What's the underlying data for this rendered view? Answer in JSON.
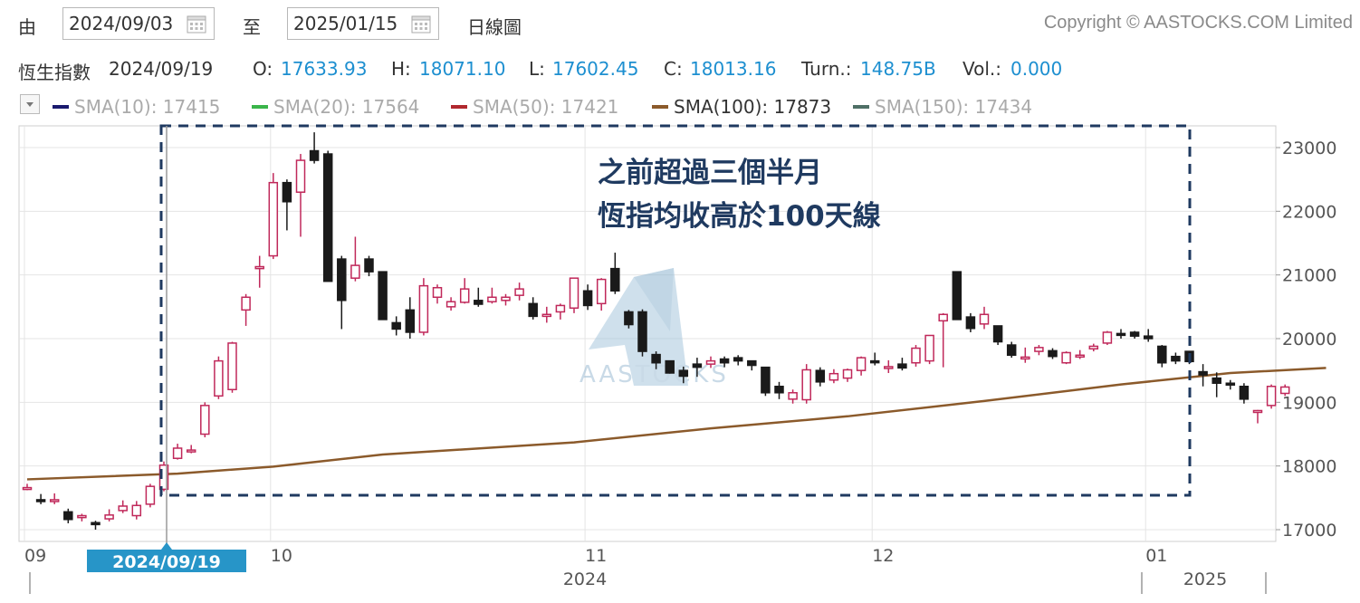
{
  "toolbar": {
    "from_label": "由",
    "from_date": "2024/09/03",
    "to_label": "至",
    "to_date": "2025/01/15",
    "period": "日線圖",
    "copyright": "Copyright © AASTOCKS.COM Limited"
  },
  "info": {
    "index_name": "恆生指數",
    "date": "2024/09/19",
    "open_label": "O:",
    "open": "17633.93",
    "high_label": "H:",
    "high": "18071.10",
    "low_label": "L:",
    "low": "17602.45",
    "close_label": "C:",
    "close": "18013.16",
    "turnover_label": "Turn.:",
    "turnover": "148.75B",
    "volume_label": "Vol.:",
    "volume": "0.000"
  },
  "legend": [
    {
      "label": "SMA(10): 17415",
      "color": "#1a1a6e",
      "active": false
    },
    {
      "label": "SMA(20): 17564",
      "color": "#3ab54a",
      "active": false
    },
    {
      "label": "SMA(50): 17421",
      "color": "#b0282e",
      "active": false
    },
    {
      "label": "SMA(100): 17873",
      "color": "#8b5a2b",
      "active": true
    },
    {
      "label": "SMA(150): 17434",
      "color": "#4f6f66",
      "active": false
    }
  ],
  "watermark": "AASTOCKS",
  "annotation": {
    "line1": "之前超過三個半月",
    "line2": "恆指均收高於100天線"
  },
  "crosshair_date_label": "2024/09/19",
  "chart_data": {
    "type": "candlestick",
    "ylim": [
      16800,
      23300
    ],
    "yticks": [
      17000,
      18000,
      19000,
      20000,
      21000,
      22000,
      23000
    ],
    "month_labels": [
      "09",
      "10",
      "11",
      "12",
      "01"
    ],
    "year_labels": [
      "2024",
      "2025"
    ],
    "colors": {
      "up": "#c0285a",
      "down": "#1a1a1a",
      "sma100": "#8b5a2b",
      "annotation_box": "#1f3a60"
    },
    "candles": [
      {
        "o": 17650,
        "h": 17720,
        "l": 17620,
        "c": 17660
      },
      {
        "o": 17470,
        "h": 17560,
        "l": 17400,
        "c": 17460
      },
      {
        "o": 17470,
        "h": 17570,
        "l": 17400,
        "c": 17470
      },
      {
        "o": 17280,
        "h": 17330,
        "l": 17100,
        "c": 17160
      },
      {
        "o": 17190,
        "h": 17250,
        "l": 17130,
        "c": 17220
      },
      {
        "o": 17110,
        "h": 17140,
        "l": 17000,
        "c": 17080
      },
      {
        "o": 17170,
        "h": 17320,
        "l": 17130,
        "c": 17230
      },
      {
        "o": 17300,
        "h": 17460,
        "l": 17260,
        "c": 17370
      },
      {
        "o": 17220,
        "h": 17450,
        "l": 17160,
        "c": 17380
      },
      {
        "o": 17400,
        "h": 17720,
        "l": 17350,
        "c": 17680
      },
      {
        "o": 17633.93,
        "h": 18071.1,
        "l": 17602.45,
        "c": 18013.16
      },
      {
        "o": 18120,
        "h": 18350,
        "l": 18100,
        "c": 18280
      },
      {
        "o": 18250,
        "h": 18330,
        "l": 18200,
        "c": 18250
      },
      {
        "o": 18500,
        "h": 19000,
        "l": 18450,
        "c": 18950
      },
      {
        "o": 19100,
        "h": 19720,
        "l": 19050,
        "c": 19650
      },
      {
        "o": 19200,
        "h": 19950,
        "l": 19150,
        "c": 19930
      },
      {
        "o": 20450,
        "h": 20700,
        "l": 20200,
        "c": 20650
      },
      {
        "o": 21100,
        "h": 21300,
        "l": 20800,
        "c": 21130
      },
      {
        "o": 21300,
        "h": 22600,
        "l": 21250,
        "c": 22450
      },
      {
        "o": 22450,
        "h": 22500,
        "l": 21700,
        "c": 22150
      },
      {
        "o": 22300,
        "h": 22900,
        "l": 21600,
        "c": 22800
      },
      {
        "o": 22950,
        "h": 23240,
        "l": 22750,
        "c": 22800
      },
      {
        "o": 22900,
        "h": 22950,
        "l": 20900,
        "c": 20900
      },
      {
        "o": 21250,
        "h": 21300,
        "l": 20150,
        "c": 20600
      },
      {
        "o": 20950,
        "h": 21600,
        "l": 20900,
        "c": 21150
      },
      {
        "o": 21250,
        "h": 21300,
        "l": 20980,
        "c": 21050
      },
      {
        "o": 21050,
        "h": 21050,
        "l": 20300,
        "c": 20300
      },
      {
        "o": 20250,
        "h": 20350,
        "l": 20050,
        "c": 20150
      },
      {
        "o": 20450,
        "h": 20650,
        "l": 20000,
        "c": 20100
      },
      {
        "o": 20100,
        "h": 20950,
        "l": 20050,
        "c": 20830
      },
      {
        "o": 20650,
        "h": 20850,
        "l": 20550,
        "c": 20800
      },
      {
        "o": 20500,
        "h": 20650,
        "l": 20440,
        "c": 20580
      },
      {
        "o": 20570,
        "h": 20950,
        "l": 20550,
        "c": 20780
      },
      {
        "o": 20600,
        "h": 20800,
        "l": 20500,
        "c": 20540
      },
      {
        "o": 20580,
        "h": 20800,
        "l": 20550,
        "c": 20650
      },
      {
        "o": 20600,
        "h": 20700,
        "l": 20520,
        "c": 20650
      },
      {
        "o": 20680,
        "h": 20880,
        "l": 20600,
        "c": 20780
      },
      {
        "o": 20550,
        "h": 20650,
        "l": 20300,
        "c": 20350
      },
      {
        "o": 20350,
        "h": 20500,
        "l": 20250,
        "c": 20380
      },
      {
        "o": 20420,
        "h": 20550,
        "l": 20300,
        "c": 20520
      },
      {
        "o": 20480,
        "h": 20950,
        "l": 20400,
        "c": 20950
      },
      {
        "o": 20750,
        "h": 20850,
        "l": 20450,
        "c": 20520
      },
      {
        "o": 20550,
        "h": 20950,
        "l": 20440,
        "c": 20930
      },
      {
        "o": 21100,
        "h": 21350,
        "l": 20700,
        "c": 20750
      },
      {
        "o": 20420,
        "h": 20450,
        "l": 20160,
        "c": 20220
      },
      {
        "o": 20420,
        "h": 20460,
        "l": 19720,
        "c": 19800
      },
      {
        "o": 19750,
        "h": 19800,
        "l": 19520,
        "c": 19620
      },
      {
        "o": 19650,
        "h": 19650,
        "l": 19450,
        "c": 19460
      },
      {
        "o": 19500,
        "h": 19560,
        "l": 19300,
        "c": 19410
      },
      {
        "o": 19600,
        "h": 19700,
        "l": 19400,
        "c": 19550
      },
      {
        "o": 19600,
        "h": 19720,
        "l": 19540,
        "c": 19650
      },
      {
        "o": 19680,
        "h": 19720,
        "l": 19550,
        "c": 19620
      },
      {
        "o": 19700,
        "h": 19740,
        "l": 19580,
        "c": 19650
      },
      {
        "o": 19650,
        "h": 19650,
        "l": 19500,
        "c": 19580
      },
      {
        "o": 19550,
        "h": 19550,
        "l": 19100,
        "c": 19150
      },
      {
        "o": 19250,
        "h": 19320,
        "l": 19050,
        "c": 19150
      },
      {
        "o": 19050,
        "h": 19200,
        "l": 18980,
        "c": 19150
      },
      {
        "o": 19040,
        "h": 19600,
        "l": 18980,
        "c": 19510
      },
      {
        "o": 19500,
        "h": 19550,
        "l": 19250,
        "c": 19320
      },
      {
        "o": 19350,
        "h": 19520,
        "l": 19300,
        "c": 19450
      },
      {
        "o": 19380,
        "h": 19530,
        "l": 19320,
        "c": 19510
      },
      {
        "o": 19500,
        "h": 19720,
        "l": 19420,
        "c": 19700
      },
      {
        "o": 19650,
        "h": 19780,
        "l": 19580,
        "c": 19630
      },
      {
        "o": 19560,
        "h": 19660,
        "l": 19460,
        "c": 19560
      },
      {
        "o": 19600,
        "h": 19700,
        "l": 19500,
        "c": 19540
      },
      {
        "o": 19620,
        "h": 19900,
        "l": 19560,
        "c": 19850
      },
      {
        "o": 19650,
        "h": 20050,
        "l": 19600,
        "c": 20050
      },
      {
        "o": 20280,
        "h": 20400,
        "l": 19550,
        "c": 20380
      },
      {
        "o": 21050,
        "h": 21050,
        "l": 20300,
        "c": 20300
      },
      {
        "o": 20340,
        "h": 20400,
        "l": 20100,
        "c": 20160
      },
      {
        "o": 20230,
        "h": 20500,
        "l": 20150,
        "c": 20380
      },
      {
        "o": 20200,
        "h": 20200,
        "l": 19900,
        "c": 19950
      },
      {
        "o": 19900,
        "h": 19950,
        "l": 19700,
        "c": 19740
      },
      {
        "o": 19700,
        "h": 19860,
        "l": 19620,
        "c": 19710
      },
      {
        "o": 19800,
        "h": 19900,
        "l": 19740,
        "c": 19860
      },
      {
        "o": 19810,
        "h": 19850,
        "l": 19680,
        "c": 19720
      },
      {
        "o": 19620,
        "h": 19800,
        "l": 19600,
        "c": 19780
      },
      {
        "o": 19720,
        "h": 19820,
        "l": 19680,
        "c": 19740
      },
      {
        "o": 19840,
        "h": 19920,
        "l": 19800,
        "c": 19880
      },
      {
        "o": 19930,
        "h": 20120,
        "l": 19900,
        "c": 20100
      },
      {
        "o": 20080,
        "h": 20150,
        "l": 20000,
        "c": 20060
      },
      {
        "o": 20100,
        "h": 20120,
        "l": 20000,
        "c": 20040
      },
      {
        "o": 20040,
        "h": 20150,
        "l": 19950,
        "c": 20000
      },
      {
        "o": 19880,
        "h": 19900,
        "l": 19550,
        "c": 19620
      },
      {
        "o": 19720,
        "h": 19780,
        "l": 19600,
        "c": 19650
      },
      {
        "o": 19800,
        "h": 19800,
        "l": 19600,
        "c": 19640
      },
      {
        "o": 19480,
        "h": 19600,
        "l": 19250,
        "c": 19430
      },
      {
        "o": 19380,
        "h": 19470,
        "l": 19080,
        "c": 19300
      },
      {
        "o": 19300,
        "h": 19350,
        "l": 19200,
        "c": 19290
      },
      {
        "o": 19250,
        "h": 19300,
        "l": 18980,
        "c": 19050
      },
      {
        "o": 18860,
        "h": 18880,
        "l": 18670,
        "c": 18870
      },
      {
        "o": 18950,
        "h": 19280,
        "l": 18900,
        "c": 19250
      },
      {
        "o": 19140,
        "h": 19280,
        "l": 19100,
        "c": 19240
      }
    ],
    "sma100": [
      [
        0,
        17790
      ],
      [
        11,
        17880
      ],
      [
        18,
        17990
      ],
      [
        26,
        18180
      ],
      [
        40,
        18370
      ],
      [
        50,
        18590
      ],
      [
        60,
        18780
      ],
      [
        70,
        19020
      ],
      [
        80,
        19280
      ],
      [
        88,
        19460
      ],
      [
        95,
        19540
      ]
    ]
  }
}
